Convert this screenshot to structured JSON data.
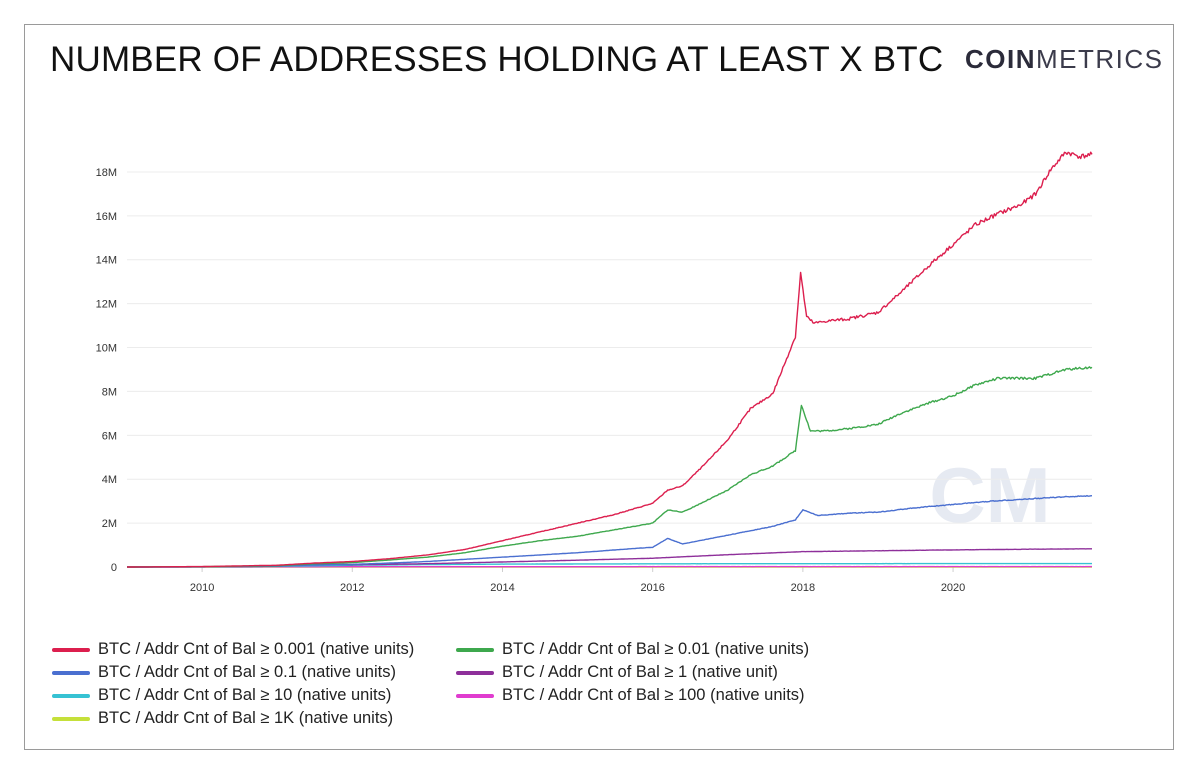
{
  "header": {
    "title": "NUMBER OF ADDRESSES HOLDING AT LEAST X BTC",
    "brand_bold": "COIN",
    "brand_light": "METRICS",
    "watermark": "CM"
  },
  "chart_data": {
    "type": "line",
    "title": "NUMBER OF ADDRESSES HOLDING AT LEAST X BTC",
    "xlabel": "",
    "ylabel": "",
    "xlim": [
      2009.0,
      2021.85
    ],
    "ylim": [
      0,
      19000000
    ],
    "x_ticks": [
      2010,
      2012,
      2014,
      2016,
      2018,
      2020
    ],
    "x_tick_labels": [
      "2010",
      "2012",
      "2014",
      "2016",
      "2018",
      "2020"
    ],
    "y_ticks": [
      0,
      2000000,
      4000000,
      6000000,
      8000000,
      10000000,
      12000000,
      14000000,
      16000000,
      18000000
    ],
    "y_tick_labels": [
      "0",
      "2M",
      "4M",
      "6M",
      "8M",
      "10M",
      "12M",
      "14M",
      "16M",
      "18M"
    ],
    "grid": true,
    "legend_position": "bottom",
    "series": [
      {
        "name": "BTC / Addr Cnt of Bal ≥ 0.001 (native units)",
        "color": "#dc1f4e",
        "x": [
          2009.0,
          2010.0,
          2011.0,
          2011.5,
          2012.0,
          2012.5,
          2013.0,
          2013.5,
          2014.0,
          2014.5,
          2015.0,
          2015.5,
          2016.0,
          2016.2,
          2016.4,
          2016.7,
          2017.0,
          2017.3,
          2017.6,
          2017.9,
          2017.97,
          2018.05,
          2018.15,
          2018.3,
          2018.6,
          2019.0,
          2019.3,
          2019.7,
          2020.0,
          2020.3,
          2020.6,
          2020.9,
          2021.1,
          2021.3,
          2021.5,
          2021.7,
          2021.85
        ],
        "values": [
          0,
          20000,
          80000,
          180000,
          250000,
          380000,
          550000,
          800000,
          1200000,
          1600000,
          2000000,
          2400000,
          2900000,
          3500000,
          3700000,
          4700000,
          5800000,
          7200000,
          7900000,
          10500000,
          13400000,
          11400000,
          11100000,
          11200000,
          11300000,
          11600000,
          12500000,
          13800000,
          14700000,
          15600000,
          16100000,
          16500000,
          17000000,
          18100000,
          18900000,
          18700000,
          18800000
        ]
      },
      {
        "name": "BTC / Addr Cnt of Bal ≥ 0.01 (native units)",
        "color": "#3ea84d",
        "x": [
          2009.0,
          2010.0,
          2011.0,
          2011.5,
          2012.0,
          2012.5,
          2013.0,
          2013.5,
          2014.0,
          2014.5,
          2015.0,
          2015.5,
          2016.0,
          2016.2,
          2016.4,
          2016.7,
          2017.0,
          2017.3,
          2017.6,
          2017.9,
          2017.98,
          2018.1,
          2018.3,
          2018.6,
          2019.0,
          2019.3,
          2019.7,
          2020.0,
          2020.3,
          2020.6,
          2020.9,
          2021.1,
          2021.3,
          2021.5,
          2021.85
        ],
        "values": [
          0,
          15000,
          60000,
          150000,
          200000,
          320000,
          450000,
          650000,
          950000,
          1200000,
          1400000,
          1700000,
          2000000,
          2600000,
          2500000,
          3000000,
          3500000,
          4200000,
          4600000,
          5300000,
          7400000,
          6200000,
          6200000,
          6300000,
          6500000,
          7000000,
          7500000,
          7800000,
          8300000,
          8600000,
          8600000,
          8600000,
          8800000,
          9000000,
          9100000
        ]
      },
      {
        "name": "BTC / Addr Cnt of Bal ≥ 0.1 (native units)",
        "color": "#4a6fd0",
        "x": [
          2009.0,
          2010.0,
          2011.0,
          2011.5,
          2012.0,
          2012.5,
          2013.0,
          2013.5,
          2014.0,
          2014.5,
          2015.0,
          2015.5,
          2016.0,
          2016.2,
          2016.4,
          2016.7,
          2017.0,
          2017.3,
          2017.6,
          2017.9,
          2018.0,
          2018.2,
          2018.6,
          2019.0,
          2019.5,
          2020.0,
          2020.5,
          2021.0,
          2021.5,
          2021.85
        ],
        "values": [
          0,
          10000,
          40000,
          90000,
          120000,
          180000,
          250000,
          350000,
          450000,
          550000,
          650000,
          780000,
          900000,
          1300000,
          1050000,
          1250000,
          1450000,
          1650000,
          1850000,
          2150000,
          2600000,
          2350000,
          2450000,
          2500000,
          2700000,
          2850000,
          3000000,
          3100000,
          3200000,
          3250000
        ]
      },
      {
        "name": "BTC / Addr Cnt of Bal ≥ 1 (native unit)",
        "color": "#8e2f9a",
        "x": [
          2009.0,
          2010.0,
          2011.0,
          2011.5,
          2012.0,
          2013.0,
          2014.0,
          2015.0,
          2016.0,
          2016.5,
          2017.0,
          2018.0,
          2019.0,
          2020.0,
          2021.0,
          2021.85
        ],
        "values": [
          0,
          8000,
          40000,
          150000,
          100000,
          150000,
          230000,
          310000,
          400000,
          480000,
          560000,
          700000,
          740000,
          780000,
          810000,
          830000
        ]
      },
      {
        "name": "BTC / Addr Cnt of Bal ≥ 10 (native units)",
        "color": "#36c2d3",
        "x": [
          2009.0,
          2010.0,
          2011.0,
          2012.0,
          2013.0,
          2014.0,
          2015.0,
          2016.0,
          2017.0,
          2018.0,
          2019.0,
          2020.0,
          2021.0,
          2021.85
        ],
        "values": [
          0,
          6000,
          30000,
          80000,
          110000,
          130000,
          140000,
          145000,
          150000,
          150000,
          152000,
          155000,
          155000,
          155000
        ]
      },
      {
        "name": "BTC / Addr Cnt of Bal ≥ 100 (native units)",
        "color": "#e03ccf",
        "x": [
          2009.0,
          2010.0,
          2011.0,
          2012.0,
          2014.0,
          2016.0,
          2018.0,
          2020.0,
          2021.85
        ],
        "values": [
          0,
          2000,
          8000,
          14000,
          15000,
          16000,
          16000,
          16000,
          16000
        ]
      },
      {
        "name": "BTC / Addr Cnt of Bal ≥ 1K (native units)",
        "color": "#c5e03a",
        "x": [
          2009.0,
          2010.0,
          2011.0,
          2012.0,
          2014.0,
          2016.0,
          2018.0,
          2020.0,
          2021.85
        ],
        "values": [
          0,
          500,
          1500,
          2000,
          2100,
          2100,
          2200,
          2200,
          2200
        ]
      }
    ]
  }
}
